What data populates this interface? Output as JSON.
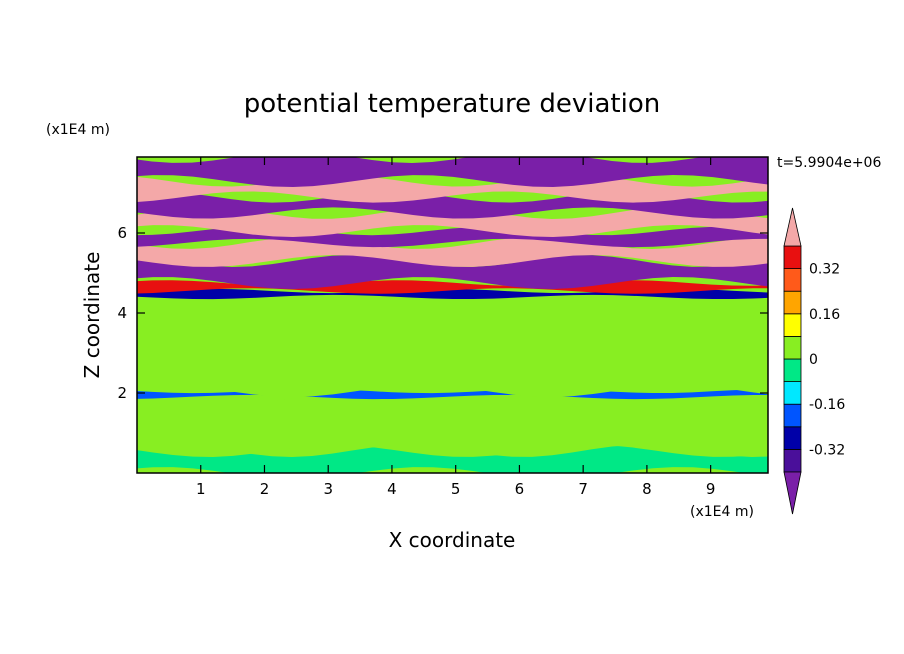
{
  "chart_data": {
    "type": "heatmap",
    "title": "potential temperature deviation",
    "xlabel": "X coordinate",
    "ylabel": "Z coordinate",
    "x_unit": "(x1E4 m)",
    "y_unit": "(x1E4 m)",
    "time_label": "t=5.9904e+06",
    "xlim": [
      0,
      9.9
    ],
    "ylim": [
      0,
      7.9
    ],
    "x_ticks": [
      1,
      2,
      3,
      4,
      5,
      6,
      7,
      8,
      9
    ],
    "y_ticks": [
      2,
      4,
      6
    ],
    "colorbar": {
      "levels": [
        -0.4,
        -0.32,
        -0.24,
        -0.16,
        -0.08,
        0,
        0.08,
        0.16,
        0.24,
        0.32,
        0.4
      ],
      "tick_labels": [
        "0.32",
        "0.16",
        "0",
        "-0.16",
        "-0.32"
      ],
      "tick_values": [
        0.32,
        0.16,
        0,
        -0.16,
        -0.32
      ],
      "colors": [
        "#7a1fa8",
        "#4a0f9a",
        "#0000a8",
        "#0055ff",
        "#00e8ff",
        "#00e886",
        "#88ee22",
        "#ffff00",
        "#ffa500",
        "#ff5a1a",
        "#e81010",
        "#f4a8a8"
      ],
      "extend": "both"
    },
    "bands": [
      {
        "z": [
          0.0,
          0.55
        ],
        "value": -0.04
      },
      {
        "z": [
          0.55,
          1.9
        ],
        "value": 0.02
      },
      {
        "z": [
          1.9,
          2.05
        ],
        "value": -0.2
      },
      {
        "z": [
          2.05,
          4.4
        ],
        "value": 0.03
      },
      {
        "z": [
          4.4,
          4.55
        ],
        "value": -0.25
      },
      {
        "z": [
          4.55,
          4.75
        ],
        "value": 0.35
      },
      {
        "z": [
          4.75,
          5.3
        ],
        "value": -0.45
      },
      {
        "z": [
          5.3,
          5.75
        ],
        "value": 0.45
      },
      {
        "z": [
          5.75,
          6.05
        ],
        "value": -0.45
      },
      {
        "z": [
          6.05,
          6.5
        ],
        "value": 0.45
      },
      {
        "z": [
          6.5,
          6.9
        ],
        "value": -0.45
      },
      {
        "z": [
          6.9,
          7.3
        ],
        "value": 0.45
      },
      {
        "z": [
          7.3,
          7.9
        ],
        "value": -0.45
      }
    ]
  }
}
